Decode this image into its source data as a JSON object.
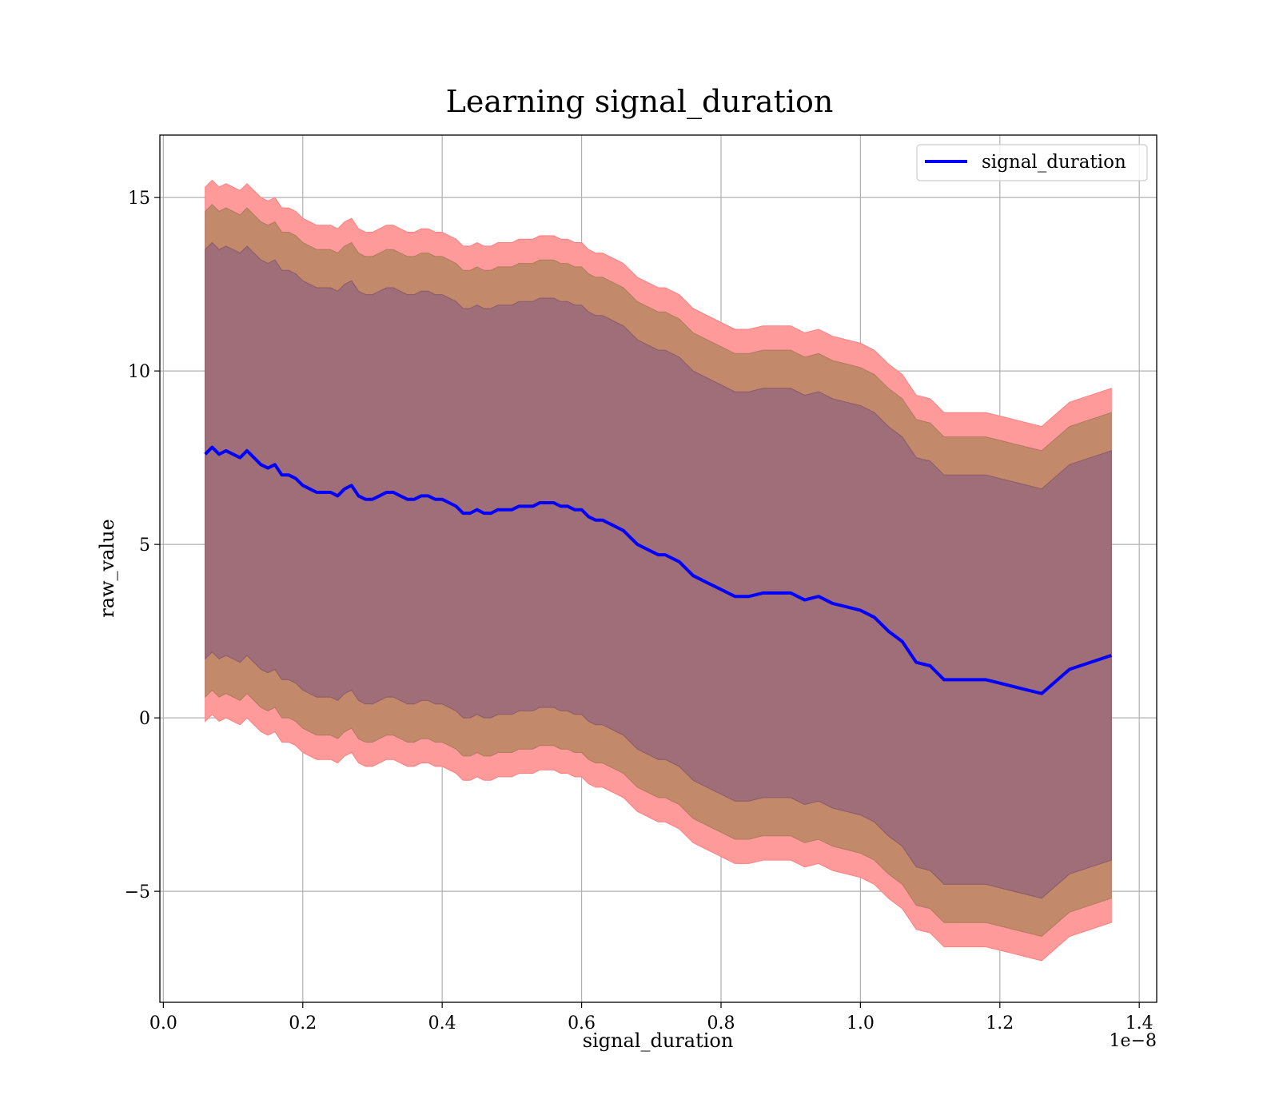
{
  "chart_data": {
    "type": "area",
    "title": "Learning signal_duration",
    "xlabel": "signal_duration",
    "ylabel": "raw_value",
    "x_offset_label": "1e−8",
    "xlim": [
      -0.005,
      1.425
    ],
    "ylim": [
      -8.2,
      16.8
    ],
    "x_ticks": [
      0.0,
      0.2,
      0.4,
      0.6,
      0.8,
      1.0,
      1.2,
      1.4
    ],
    "x_tick_labels": [
      "0.0",
      "0.2",
      "0.4",
      "0.6",
      "0.8",
      "1.0",
      "1.2",
      "1.4"
    ],
    "y_ticks": [
      -5,
      0,
      5,
      10,
      15
    ],
    "y_tick_labels": [
      "−5",
      "0",
      "5",
      "10",
      "15"
    ],
    "grid": true,
    "legend_position": "upper right",
    "colors": {
      "line": "#0000ff",
      "band_outer": "#ff9a9a",
      "band_mid": "#c28a6a",
      "band_inner": "#a06e78"
    },
    "x": [
      0.06,
      0.07,
      0.08,
      0.09,
      0.1,
      0.11,
      0.12,
      0.13,
      0.14,
      0.15,
      0.16,
      0.17,
      0.18,
      0.19,
      0.2,
      0.21,
      0.22,
      0.23,
      0.24,
      0.25,
      0.26,
      0.27,
      0.28,
      0.29,
      0.3,
      0.31,
      0.32,
      0.33,
      0.34,
      0.35,
      0.36,
      0.37,
      0.38,
      0.39,
      0.4,
      0.41,
      0.42,
      0.43,
      0.44,
      0.45,
      0.46,
      0.47,
      0.48,
      0.49,
      0.5,
      0.51,
      0.52,
      0.53,
      0.54,
      0.55,
      0.56,
      0.57,
      0.58,
      0.59,
      0.6,
      0.61,
      0.62,
      0.63,
      0.64,
      0.65,
      0.66,
      0.67,
      0.68,
      0.69,
      0.7,
      0.71,
      0.72,
      0.73,
      0.74,
      0.76,
      0.78,
      0.8,
      0.82,
      0.84,
      0.86,
      0.88,
      0.9,
      0.92,
      0.94,
      0.96,
      0.98,
      1.0,
      1.02,
      1.04,
      1.06,
      1.08,
      1.1,
      1.12,
      1.14,
      1.16,
      1.18,
      1.2,
      1.22,
      1.24,
      1.26,
      1.3,
      1.36
    ],
    "series": [
      {
        "name": "signal_duration",
        "values": [
          7.6,
          7.8,
          7.6,
          7.7,
          7.6,
          7.5,
          7.7,
          7.5,
          7.3,
          7.2,
          7.3,
          7.0,
          7.0,
          6.9,
          6.7,
          6.6,
          6.5,
          6.5,
          6.5,
          6.4,
          6.6,
          6.7,
          6.4,
          6.3,
          6.3,
          6.4,
          6.5,
          6.5,
          6.4,
          6.3,
          6.3,
          6.4,
          6.4,
          6.3,
          6.3,
          6.2,
          6.1,
          5.9,
          5.9,
          6.0,
          5.9,
          5.9,
          6.0,
          6.0,
          6.0,
          6.1,
          6.1,
          6.1,
          6.2,
          6.2,
          6.2,
          6.1,
          6.1,
          6.0,
          6.0,
          5.8,
          5.7,
          5.7,
          5.6,
          5.5,
          5.4,
          5.2,
          5.0,
          4.9,
          4.8,
          4.7,
          4.7,
          4.6,
          4.5,
          4.1,
          3.9,
          3.7,
          3.5,
          3.5,
          3.6,
          3.6,
          3.6,
          3.4,
          3.5,
          3.3,
          3.2,
          3.1,
          2.9,
          2.5,
          2.2,
          1.6,
          1.5,
          1.1,
          1.1,
          1.1,
          1.1,
          1.0,
          0.9,
          0.8,
          0.7,
          1.4,
          1.8
        ]
      }
    ],
    "bands": {
      "inner_offset": [
        5.9,
        5.9,
        5.9,
        5.9,
        5.9,
        5.9,
        5.9,
        5.9,
        5.9,
        5.9,
        5.9,
        5.9,
        5.9,
        5.9,
        5.9,
        5.9,
        5.9,
        5.9,
        5.9,
        5.9,
        5.9,
        5.9,
        5.9,
        5.9,
        5.9,
        5.9,
        5.9,
        5.9,
        5.9,
        5.9,
        5.9,
        5.9,
        5.9,
        5.9,
        5.9,
        5.9,
        5.9,
        5.9,
        5.9,
        5.9,
        5.9,
        5.9,
        5.9,
        5.9,
        5.9,
        5.9,
        5.9,
        5.9,
        5.9,
        5.9,
        5.9,
        5.9,
        5.9,
        5.9,
        5.9,
        5.9,
        5.9,
        5.9,
        5.9,
        5.9,
        5.9,
        5.9,
        5.9,
        5.9,
        5.9,
        5.9,
        5.9,
        5.9,
        5.9,
        5.9,
        5.9,
        5.9,
        5.9,
        5.9,
        5.9,
        5.9,
        5.9,
        5.9,
        5.9,
        5.9,
        5.9,
        5.9,
        5.9,
        5.9,
        5.9,
        5.9,
        5.9,
        5.9,
        5.9,
        5.9,
        5.9,
        5.9,
        5.9,
        5.9,
        5.9,
        5.9,
        5.9
      ],
      "mid_offset": 7.0,
      "outer_offset": 7.7
    }
  },
  "legend": {
    "entries": [
      {
        "label": "signal_duration",
        "color": "#0000ff"
      }
    ]
  }
}
